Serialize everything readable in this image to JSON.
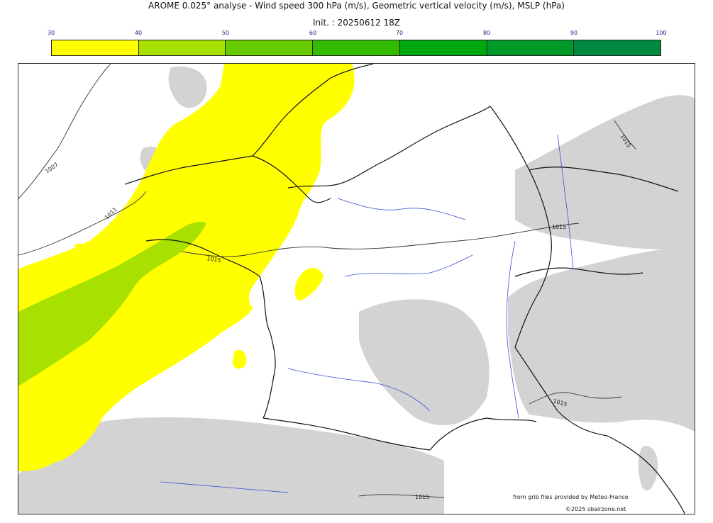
{
  "header": {
    "title": "AROME 0.025° analyse - Wind speed 300 hPa (m/s), Geometric vertical velocity (m/s), MSLP (hPa)",
    "init": "Init. : 20250612 18Z"
  },
  "colorbar": {
    "ticks": [
      "30",
      "40",
      "50",
      "60",
      "70",
      "80",
      "90",
      "100"
    ],
    "colors": [
      "#ffff00",
      "#a8e000",
      "#66cc00",
      "#33bb00",
      "#00a810",
      "#009a2a",
      "#008a40",
      "#007848"
    ]
  },
  "map": {
    "isobar_labels": [
      "1007",
      "1011",
      "1015",
      "1015",
      "1015",
      "1015",
      "1015"
    ],
    "colors": {
      "wind_30_40": "#ffff00",
      "wind_40_50": "#a8e000",
      "terrain": "#d3d3d3",
      "rivers": "#3a4fd8",
      "borders": "#111111"
    }
  },
  "credits": {
    "source": "from grib files provided by Meteo-France",
    "copyright": "©2025 sbairzone.net"
  }
}
